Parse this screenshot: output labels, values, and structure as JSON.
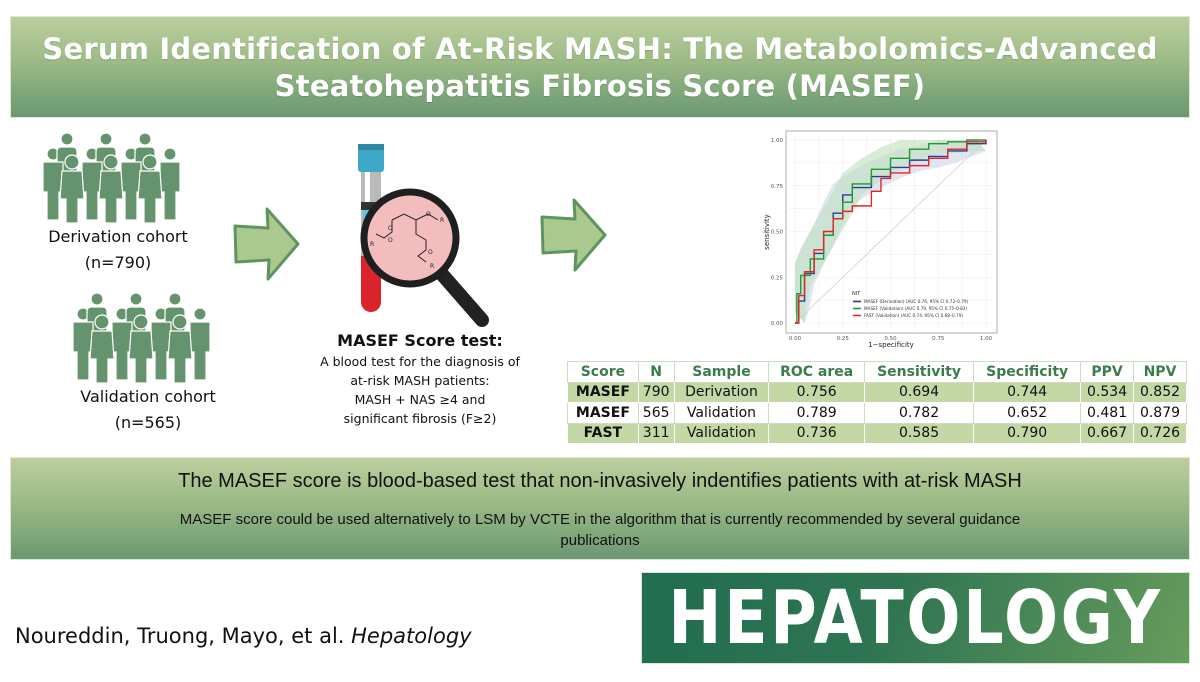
{
  "header": {
    "title_line1": "Serum Identification of At-Risk MASH: The Metabolomics-Advanced",
    "title_line2": "Steatohepatitis Fibrosis Score (MASEF)"
  },
  "cohorts": [
    {
      "label": "Derivation cohort",
      "n": "(n=790)",
      "icon": "people-group-icon"
    },
    {
      "label": "Validation cohort",
      "n": "(n=565)",
      "icon": "people-group-icon"
    }
  ],
  "test": {
    "title": "MASEF Score test:",
    "lines": [
      "A blood test for the diagnosis of",
      "at-risk MASH patients:",
      "MASH + NAS ≥4 and",
      "significant fibrosis (F≥2)"
    ],
    "icon": "blood-tube-magnifier-icon"
  },
  "chart_data": {
    "type": "line",
    "title": "",
    "xlabel": "1−specificity",
    "ylabel": "sensitivity",
    "xlim": [
      0,
      1
    ],
    "ylim": [
      0,
      1
    ],
    "x_ticks": [
      "0.00",
      "0.25",
      "0.50",
      "0.75",
      "1.00"
    ],
    "y_ticks": [
      "0.00",
      "0.25",
      "0.50",
      "0.75",
      "1.00"
    ],
    "grid": true,
    "legend_title": "NIT",
    "legend_position": "bottom-right inside",
    "series": [
      {
        "name": "MASEF (Derivation) (AUC 0.76, 95% CI 0.72–0.79)",
        "color": "#2c3e8f",
        "x": [
          0,
          0.02,
          0.05,
          0.1,
          0.15,
          0.2,
          0.25,
          0.3,
          0.4,
          0.5,
          0.6,
          0.7,
          0.8,
          0.9,
          1.0
        ],
        "y": [
          0,
          0.12,
          0.27,
          0.38,
          0.48,
          0.6,
          0.7,
          0.74,
          0.8,
          0.85,
          0.89,
          0.91,
          0.94,
          0.98,
          1.0
        ]
      },
      {
        "name": "MASEF (Validation) (AUC 0.79, 95% CI 0.75–0.83)",
        "color": "#1f9a2a",
        "x": [
          0,
          0.01,
          0.03,
          0.08,
          0.15,
          0.2,
          0.25,
          0.3,
          0.4,
          0.5,
          0.6,
          0.7,
          0.8,
          0.9,
          1.0
        ],
        "y": [
          0,
          0.16,
          0.26,
          0.35,
          0.48,
          0.57,
          0.66,
          0.76,
          0.84,
          0.9,
          0.95,
          0.98,
          0.99,
          1.0,
          1.0
        ]
      },
      {
        "name": "FAST (Validation) (AUC 0.74, 95% CI 0.68–0.79)",
        "color": "#e0262a",
        "x": [
          0,
          0.02,
          0.05,
          0.1,
          0.15,
          0.2,
          0.25,
          0.3,
          0.4,
          0.45,
          0.5,
          0.6,
          0.7,
          0.8,
          0.9,
          1.0
        ],
        "y": [
          0,
          0.15,
          0.28,
          0.4,
          0.5,
          0.57,
          0.61,
          0.64,
          0.72,
          0.79,
          0.82,
          0.86,
          0.9,
          0.95,
          0.99,
          1.0
        ]
      }
    ],
    "reference_line": "diagonal y=x"
  },
  "table": {
    "columns": [
      "Score",
      "N",
      "Sample",
      "ROC area",
      "Sensitivity",
      "Specificity",
      "PPV",
      "NPV"
    ],
    "rows": [
      [
        "MASEF",
        "790",
        "Derivation",
        "0.756",
        "0.694",
        "0.744",
        "0.534",
        "0.852"
      ],
      [
        "MASEF",
        "565",
        "Validation",
        "0.789",
        "0.782",
        "0.652",
        "0.481",
        "0.879"
      ],
      [
        "FAST",
        "311",
        "Validation",
        "0.736",
        "0.585",
        "0.790",
        "0.667",
        "0.726"
      ]
    ]
  },
  "summary": {
    "headline": "The MASEF score is blood-based test that non-invasively indentifies patients with at-risk MASH",
    "detail": "MASEF score could be used alternatively to LSM by VCTE in the algorithm that is currently recommended by several guidance publications"
  },
  "footer": {
    "authors": "Noureddin, Truong, Mayo, et al.",
    "journal_italic": "Hepatology",
    "logo_text": "HEPATOLOGY"
  },
  "colors": {
    "banner_top": "#bccf9f",
    "banner_bottom": "#6a9872",
    "people_green": "#65936d",
    "arrow_fill": "#a9c98e",
    "arrow_stroke": "#5f9461",
    "table_shade": "#c4d8a6",
    "table_header_text": "#3b7b4c",
    "logo_dark": "#206d50",
    "logo_light": "#679c5c"
  }
}
